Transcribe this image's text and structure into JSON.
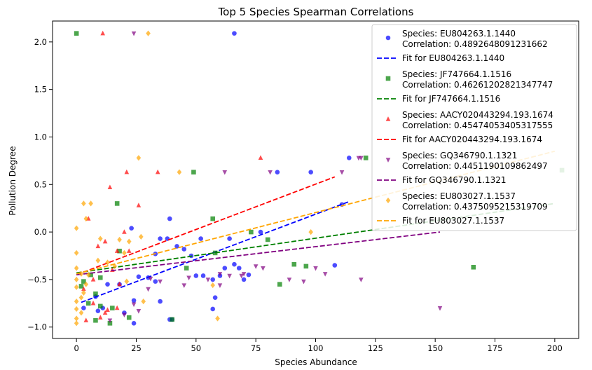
{
  "chart_data": {
    "type": "scatter",
    "title": "Top 5 Species Spearman Correlations",
    "xlabel": "Species Abundance",
    "ylabel": "Pollution Degree",
    "xlim": [
      -10,
      210
    ],
    "ylim": [
      -1.12,
      2.22
    ],
    "xticks": [
      0,
      25,
      50,
      75,
      100,
      125,
      150,
      175,
      200
    ],
    "yticks": [
      -1.0,
      -0.5,
      0.0,
      0.5,
      1.0,
      1.5,
      2.0
    ],
    "xtick_labels": [
      "0",
      "25",
      "50",
      "75",
      "100",
      "125",
      "150",
      "175",
      "200"
    ],
    "ytick_labels": [
      "−1.0",
      "−0.5",
      "0.0",
      "0.5",
      "1.0",
      "1.5",
      "2.0"
    ],
    "grid": false,
    "legend_position": "top-right",
    "series": [
      {
        "species_label": "Species: EU804263.1.1440",
        "correlation_label": "Correlation: 0.4892648091231662",
        "fit_label": "Fit for EU804263.1.1440",
        "color": "#0000ff",
        "marker": "circle",
        "fit": {
          "x": [
            2,
            114
          ],
          "y": [
            -0.74,
            0.32
          ]
        },
        "points": [
          [
            66,
            2.09
          ],
          [
            114,
            0.78
          ],
          [
            84,
            0.63
          ],
          [
            98,
            0.63
          ],
          [
            111,
            0.29
          ],
          [
            39,
            0.14
          ],
          [
            23,
            0.04
          ],
          [
            64,
            -0.07
          ],
          [
            77,
            0.0
          ],
          [
            33,
            -0.23
          ],
          [
            35,
            -0.07
          ],
          [
            38,
            -0.07
          ],
          [
            52,
            -0.07
          ],
          [
            42,
            -0.15
          ],
          [
            45,
            -0.18
          ],
          [
            48,
            -0.25
          ],
          [
            62,
            -0.38
          ],
          [
            66,
            -0.34
          ],
          [
            68,
            -0.38
          ],
          [
            72,
            -0.45
          ],
          [
            50,
            -0.46
          ],
          [
            53,
            -0.46
          ],
          [
            60,
            -0.46
          ],
          [
            57,
            -0.5
          ],
          [
            30,
            -0.48
          ],
          [
            33,
            -0.52
          ],
          [
            26,
            -0.47
          ],
          [
            108,
            -0.35
          ],
          [
            70,
            -0.5
          ],
          [
            13,
            -0.55
          ],
          [
            18,
            -0.55
          ],
          [
            8,
            -0.68
          ],
          [
            3,
            -0.8
          ],
          [
            58,
            -0.69
          ],
          [
            24,
            -0.72
          ],
          [
            35,
            -0.73
          ],
          [
            11,
            -0.8
          ],
          [
            57,
            -0.81
          ],
          [
            9,
            -0.83
          ],
          [
            20,
            -0.85
          ],
          [
            39,
            -0.92
          ],
          [
            40,
            -0.92
          ],
          [
            24,
            -0.96
          ]
        ]
      },
      {
        "species_label": "Species: JF747664.1.1516",
        "correlation_label": "Correlation: 0.46261202821347747",
        "fit_label": "Fit for JF747664.1.1516",
        "color": "#008000",
        "marker": "square",
        "fit": {
          "x": [
            0,
            200
          ],
          "y": [
            -0.43,
            0.3
          ]
        },
        "points": [
          [
            0,
            2.09
          ],
          [
            121,
            0.78
          ],
          [
            49,
            0.63
          ],
          [
            17,
            0.3
          ],
          [
            57,
            0.14
          ],
          [
            73,
            0.0
          ],
          [
            18,
            -0.2
          ],
          [
            80,
            -0.08
          ],
          [
            58,
            -0.22
          ],
          [
            91,
            -0.34
          ],
          [
            96,
            -0.36
          ],
          [
            46,
            -0.38
          ],
          [
            166,
            -0.37
          ],
          [
            6,
            -0.45
          ],
          [
            10,
            -0.48
          ],
          [
            3,
            -0.52
          ],
          [
            85,
            -0.55
          ],
          [
            2,
            -0.57
          ],
          [
            8,
            -0.65
          ],
          [
            5,
            -0.75
          ],
          [
            10,
            -0.78
          ],
          [
            15,
            -0.8
          ],
          [
            22,
            -0.9
          ],
          [
            40,
            -0.92
          ],
          [
            8,
            -0.93
          ],
          [
            14,
            -0.96
          ],
          [
            203,
            0.65
          ]
        ]
      },
      {
        "species_label": "Species: AACY020443294.193.1674",
        "correlation_label": "Correlation: 0.45474053405317555",
        "fit_label": "Fit for AACY020443294.193.1674",
        "color": "#ff0000",
        "marker": "triangle-up",
        "fit": {
          "x": [
            0,
            108
          ],
          "y": [
            -0.45,
            0.58
          ]
        },
        "points": [
          [
            11,
            2.09
          ],
          [
            77,
            0.78
          ],
          [
            34,
            0.63
          ],
          [
            21,
            0.63
          ],
          [
            14,
            0.47
          ],
          [
            26,
            0.28
          ],
          [
            5,
            0.14
          ],
          [
            20,
            0.0
          ],
          [
            12,
            -0.1
          ],
          [
            9,
            -0.15
          ],
          [
            17,
            -0.2
          ],
          [
            22,
            -0.2
          ],
          [
            15,
            -0.4
          ],
          [
            7,
            -0.5
          ],
          [
            18,
            -0.55
          ],
          [
            3,
            -0.6
          ],
          [
            12,
            -0.85
          ],
          [
            17,
            -0.8
          ],
          [
            13,
            -0.82
          ],
          [
            7,
            -0.75
          ],
          [
            10,
            -0.9
          ],
          [
            4,
            -0.93
          ]
        ]
      },
      {
        "species_label": "Species: GQ346790.1.1321",
        "correlation_label": "Correlation: 0.4451190109862497",
        "fit_label": "Fit for GQ346790.1.1321",
        "color": "#800080",
        "marker": "triangle-down",
        "fit": {
          "x": [
            0,
            152
          ],
          "y": [
            -0.45,
            0.0
          ]
        },
        "points": [
          [
            24,
            2.09
          ],
          [
            118,
            0.78
          ],
          [
            119,
            0.78
          ],
          [
            62,
            0.63
          ],
          [
            111,
            0.63
          ],
          [
            81,
            0.63
          ],
          [
            89,
            -0.5
          ],
          [
            95,
            -0.52
          ],
          [
            75,
            -0.36
          ],
          [
            78,
            -0.38
          ],
          [
            100,
            -0.38
          ],
          [
            104,
            -0.44
          ],
          [
            60,
            -0.44
          ],
          [
            70,
            -0.44
          ],
          [
            64,
            -0.46
          ],
          [
            69,
            -0.46
          ],
          [
            47,
            -0.48
          ],
          [
            55,
            -0.5
          ],
          [
            31,
            -0.49
          ],
          [
            35,
            -0.52
          ],
          [
            45,
            -0.56
          ],
          [
            60,
            -0.56
          ],
          [
            30,
            -0.6
          ],
          [
            24,
            -0.76
          ],
          [
            26,
            -0.83
          ],
          [
            20,
            -0.87
          ],
          [
            14,
            -0.93
          ],
          [
            119,
            -0.5
          ],
          [
            152,
            -0.8
          ]
        ]
      },
      {
        "species_label": "Species: EU803027.1.1537",
        "correlation_label": "Correlation: 0.4375095215319709",
        "fit_label": "Fit for EU803027.1.1537",
        "color": "#ffa500",
        "marker": "diamond",
        "fit": {
          "x": [
            0,
            200
          ],
          "y": [
            -0.44,
            0.85
          ]
        },
        "points": [
          [
            30,
            2.09
          ],
          [
            26,
            0.78
          ],
          [
            43,
            0.63
          ],
          [
            3,
            0.3
          ],
          [
            6,
            0.3
          ],
          [
            4,
            0.14
          ],
          [
            0,
            0.04
          ],
          [
            98,
            0.0
          ],
          [
            27,
            -0.05
          ],
          [
            10,
            -0.07
          ],
          [
            18,
            -0.08
          ],
          [
            22,
            -0.1
          ],
          [
            0,
            -0.22
          ],
          [
            20,
            -0.22
          ],
          [
            9,
            -0.3
          ],
          [
            13,
            -0.32
          ],
          [
            16,
            -0.36
          ],
          [
            0,
            -0.38
          ],
          [
            2,
            -0.44
          ],
          [
            5,
            -0.45
          ],
          [
            0,
            -0.5
          ],
          [
            21,
            -0.52
          ],
          [
            4,
            -0.55
          ],
          [
            57,
            -0.56
          ],
          [
            0,
            -0.58
          ],
          [
            3,
            -0.64
          ],
          [
            2,
            -0.69
          ],
          [
            0,
            -0.73
          ],
          [
            28,
            -0.73
          ],
          [
            0,
            -0.81
          ],
          [
            2,
            -0.85
          ],
          [
            0,
            -0.91
          ],
          [
            59,
            -0.91
          ],
          [
            0,
            -0.96
          ]
        ]
      }
    ]
  }
}
